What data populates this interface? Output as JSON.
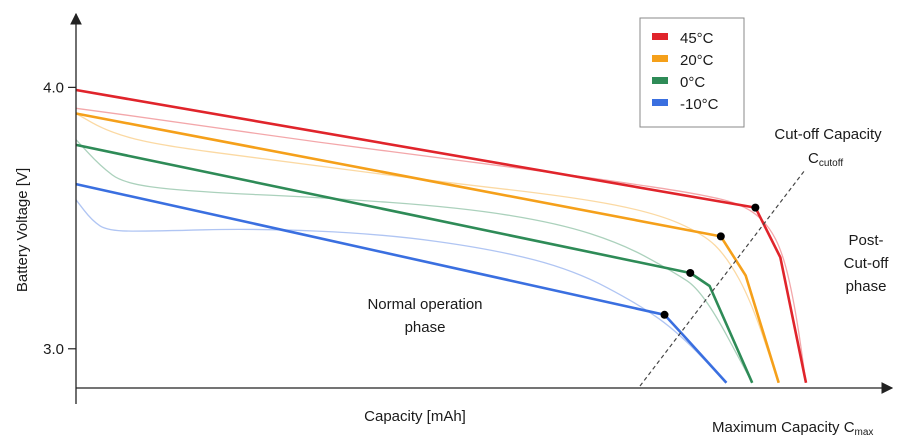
{
  "chart_data": {
    "type": "line",
    "title": "",
    "xlabel": "Capacity [mAh]",
    "ylabel": "Battery Voltage [V]",
    "x_end_label": {
      "text": "Maximum Capacity C",
      "sub": "max"
    },
    "yticks": [
      {
        "value": 3.0,
        "label": "3.0"
      },
      {
        "value": 4.0,
        "label": "4.0"
      }
    ],
    "xlim": [
      0,
      100
    ],
    "ylim": [
      2.85,
      4.12
    ],
    "legend": {
      "placement": "top-right"
    },
    "series": [
      {
        "name": "45°C",
        "color": "#e0242b",
        "linear": [
          [
            0,
            3.99
          ],
          [
            84.5,
            3.54
          ],
          [
            87.6,
            3.35
          ],
          [
            90.8,
            2.87
          ]
        ],
        "measured": [
          [
            0,
            3.92
          ],
          [
            12,
            3.87
          ],
          [
            30,
            3.79
          ],
          [
            48,
            3.72
          ],
          [
            65,
            3.65
          ],
          [
            78,
            3.59
          ],
          [
            83,
            3.55
          ],
          [
            86,
            3.48
          ],
          [
            88,
            3.36
          ],
          [
            89.5,
            3.15
          ],
          [
            90.8,
            2.87
          ]
        ]
      },
      {
        "name": "20°C",
        "color": "#f5a01a",
        "linear": [
          [
            0,
            3.9
          ],
          [
            80.2,
            3.43
          ],
          [
            83.3,
            3.28
          ],
          [
            87.4,
            2.87
          ]
        ],
        "measured": [
          [
            0,
            3.9
          ],
          [
            4,
            3.83
          ],
          [
            10,
            3.78
          ],
          [
            25,
            3.72
          ],
          [
            45,
            3.64
          ],
          [
            62,
            3.58
          ],
          [
            72,
            3.52
          ],
          [
            78,
            3.44
          ],
          [
            81,
            3.35
          ],
          [
            84,
            3.18
          ],
          [
            87.4,
            2.87
          ]
        ]
      },
      {
        "name": "0°C",
        "color": "#2e8b57",
        "linear": [
          [
            0,
            3.78
          ],
          [
            76.4,
            3.29
          ],
          [
            78.8,
            3.24
          ],
          [
            84.1,
            2.87
          ]
        ],
        "measured": [
          [
            0,
            3.8
          ],
          [
            3,
            3.7
          ],
          [
            6,
            3.63
          ],
          [
            15,
            3.6
          ],
          [
            30,
            3.58
          ],
          [
            48,
            3.54
          ],
          [
            60,
            3.48
          ],
          [
            68,
            3.4
          ],
          [
            74,
            3.3
          ],
          [
            78,
            3.22
          ],
          [
            84.1,
            2.87
          ]
        ]
      },
      {
        "name": "-10°C",
        "color": "#3a6fe0",
        "linear": [
          [
            0,
            3.63
          ],
          [
            73.2,
            3.13
          ],
          [
            75.6,
            3.05
          ],
          [
            80.9,
            2.87
          ]
        ],
        "measured": [
          [
            0,
            3.57
          ],
          [
            2,
            3.49
          ],
          [
            4,
            3.45
          ],
          [
            10,
            3.45
          ],
          [
            22,
            3.46
          ],
          [
            38,
            3.44
          ],
          [
            52,
            3.38
          ],
          [
            62,
            3.3
          ],
          [
            70,
            3.17
          ],
          [
            75,
            3.06
          ],
          [
            80.9,
            2.87
          ]
        ]
      }
    ],
    "cutoff_points": [
      [
        84.5,
        3.54
      ],
      [
        80.2,
        3.43
      ],
      [
        76.4,
        3.29
      ],
      [
        73.2,
        3.13
      ]
    ],
    "annotations": {
      "cutoff_title": "Cut-off Capacity",
      "cutoff_symbol": "C",
      "cutoff_sub": "cutoff",
      "normal_phase_line1": "Normal operation",
      "normal_phase_line2": "phase",
      "post_phase_line1": "Post-",
      "post_phase_line2": "Cut-off",
      "post_phase_line3": "phase"
    }
  }
}
